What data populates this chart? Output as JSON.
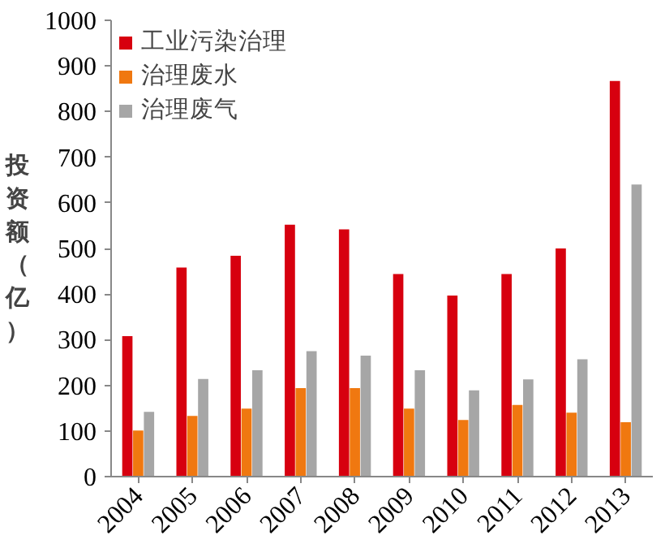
{
  "chart_data": {
    "type": "bar",
    "ylabel": "投资额（亿）",
    "categories": [
      "2004",
      "2005",
      "2006",
      "2007",
      "2008",
      "2009",
      "2010",
      "2011",
      "2012",
      "2013"
    ],
    "series": [
      {
        "name": "工业污染治理",
        "color": "#d7000f",
        "values": [
          308,
          458,
          484,
          552,
          542,
          444,
          397,
          444,
          500,
          867
        ]
      },
      {
        "name": "治理废水",
        "color": "#f07810",
        "values": [
          101,
          133,
          149,
          194,
          194,
          149,
          124,
          157,
          140,
          119
        ]
      },
      {
        "name": "治理废气",
        "color": "#a6a6a6",
        "values": [
          142,
          214,
          233,
          275,
          265,
          233,
          189,
          213,
          257,
          640
        ]
      }
    ],
    "ylim": [
      0,
      1000
    ],
    "yticks": [
      0,
      100,
      200,
      300,
      400,
      500,
      600,
      700,
      800,
      900,
      1000
    ],
    "grid": false,
    "legend": "top left"
  }
}
